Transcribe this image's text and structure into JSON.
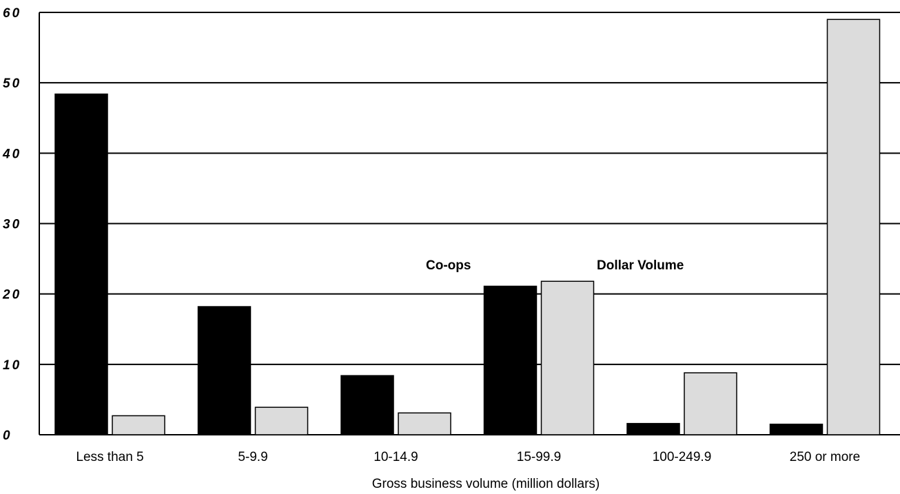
{
  "chart_data": {
    "type": "bar",
    "x_label": "Gross business volume (million dollars)",
    "categories": [
      "Less than 5",
      "5-9.9",
      "10-14.9",
      "15-99.9",
      "100-249.9",
      "250 or more"
    ],
    "series": [
      {
        "name": "Co-ops",
        "color": "#000000",
        "values": [
          48.4,
          18.2,
          8.4,
          21.1,
          1.6,
          1.5
        ]
      },
      {
        "name": "Dollar Volume",
        "color": "#dcdcdc",
        "values": [
          2.7,
          3.9,
          3.1,
          21.8,
          8.8,
          59.0
        ]
      }
    ],
    "ylim": [
      0,
      60
    ],
    "yticks": [
      0,
      10,
      20,
      30,
      40,
      50,
      60
    ],
    "grid": true
  }
}
